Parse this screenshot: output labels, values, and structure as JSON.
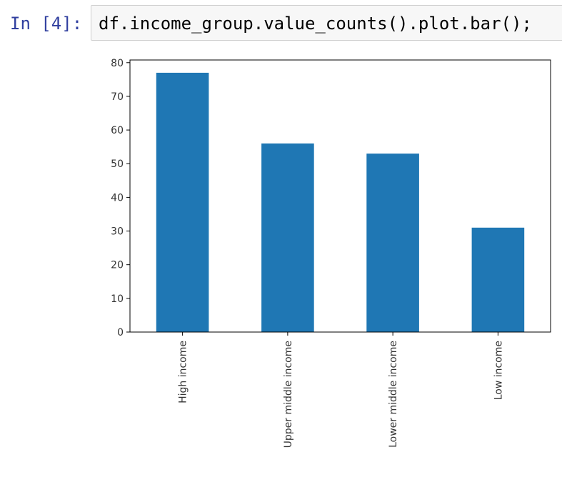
{
  "cell": {
    "prompt": "In [4]:",
    "code": "df.income_group.value_counts().plot.bar();"
  },
  "colors": {
    "prompt": "#303f9f",
    "bar": "#1f77b4",
    "axis": "#000000"
  },
  "chart_data": {
    "type": "bar",
    "categories": [
      "High income",
      "Upper middle income",
      "Lower middle income",
      "Low income"
    ],
    "values": [
      77,
      56,
      53,
      31
    ],
    "title": "",
    "xlabel": "",
    "ylabel": "",
    "ylim": [
      0,
      80.8
    ],
    "yticks": [
      0,
      10,
      20,
      30,
      40,
      50,
      60,
      70,
      80
    ],
    "grid": false,
    "legend": "none"
  }
}
